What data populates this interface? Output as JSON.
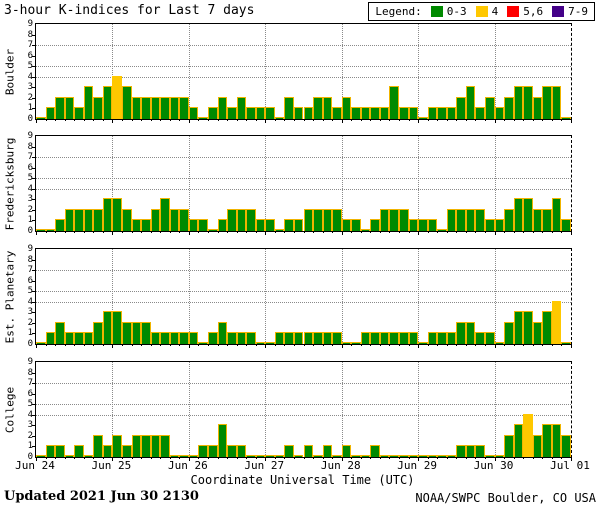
{
  "title": "3-hour K-indices for Last 7 days",
  "legend": {
    "label": "Legend:",
    "entries": [
      {
        "label": "0-3",
        "color": "#008a00"
      },
      {
        "label": "4",
        "color": "#ffc800"
      },
      {
        "label": "5,6",
        "color": "#ff0000"
      },
      {
        "label": "7-9",
        "color": "#440088"
      }
    ]
  },
  "footer": {
    "updated": "Updated 2021 Jun 30 2130",
    "source": "NOAA/SWPC Boulder, CO USA"
  },
  "chart_data": {
    "type": "bar",
    "title": "3-hour K-indices for Last 7 days",
    "xlabel": "Coordinate Universal Time (UTC)",
    "x_tick_labels": [
      "Jun 24",
      "Jun 25",
      "Jun 26",
      "Jun 27",
      "Jun 28",
      "Jun 29",
      "Jun 30",
      "Jul 01"
    ],
    "bars_per_day": 8,
    "hours_per_bar": 3,
    "ylim": [
      0,
      9
    ],
    "y_ticks": [
      0,
      1,
      2,
      3,
      4,
      5,
      6,
      7,
      8,
      9
    ],
    "dotted_hlines": [
      4,
      5,
      7
    ],
    "bar_outline_color": "#f0b400",
    "color_rules": [
      {
        "k_range": "0-3",
        "color": "#008a00"
      },
      {
        "k_range": "4",
        "color": "#ffc800"
      },
      {
        "k_range": "5-6",
        "color": "#ff0000"
      },
      {
        "k_range": "7-9",
        "color": "#440088"
      }
    ],
    "series": [
      {
        "name": "Boulder",
        "values": [
          0,
          1,
          2,
          2,
          1,
          3,
          2,
          3,
          4,
          3,
          2,
          2,
          2,
          2,
          2,
          2,
          1,
          0,
          1,
          2,
          1,
          2,
          1,
          1,
          1,
          0,
          2,
          1,
          1,
          2,
          2,
          1,
          2,
          1,
          1,
          1,
          1,
          3,
          1,
          1,
          0,
          1,
          1,
          1,
          2,
          3,
          1,
          2,
          1,
          2,
          3,
          3,
          2,
          3,
          3,
          0
        ]
      },
      {
        "name": "Fredericksburg",
        "values": [
          0,
          0,
          1,
          2,
          2,
          2,
          2,
          3,
          3,
          2,
          1,
          1,
          2,
          3,
          2,
          2,
          1,
          1,
          0,
          1,
          2,
          2,
          2,
          1,
          1,
          0,
          1,
          1,
          2,
          2,
          2,
          2,
          1,
          1,
          0,
          1,
          2,
          2,
          2,
          1,
          1,
          1,
          0,
          2,
          2,
          2,
          2,
          1,
          1,
          2,
          3,
          3,
          2,
          2,
          3,
          1
        ]
      },
      {
        "name": "Est. Planetary",
        "values": [
          0,
          1,
          2,
          1,
          1,
          1,
          2,
          3,
          3,
          2,
          2,
          2,
          1,
          1,
          1,
          1,
          1,
          0,
          1,
          2,
          1,
          1,
          1,
          0,
          0,
          1,
          1,
          1,
          1,
          1,
          1,
          1,
          0,
          0,
          1,
          1,
          1,
          1,
          1,
          1,
          0,
          1,
          1,
          1,
          2,
          2,
          1,
          1,
          0,
          2,
          3,
          3,
          2,
          3,
          4,
          0
        ]
      },
      {
        "name": "College",
        "values": [
          0,
          1,
          1,
          0,
          1,
          0,
          2,
          1,
          2,
          1,
          2,
          2,
          2,
          2,
          0,
          0,
          0,
          1,
          1,
          3,
          1,
          1,
          0,
          0,
          0,
          0,
          1,
          0,
          1,
          0,
          1,
          0,
          1,
          0,
          0,
          1,
          0,
          0,
          0,
          0,
          0,
          0,
          0,
          0,
          1,
          1,
          1,
          0,
          0,
          2,
          3,
          4,
          2,
          3,
          3,
          2
        ]
      }
    ]
  }
}
